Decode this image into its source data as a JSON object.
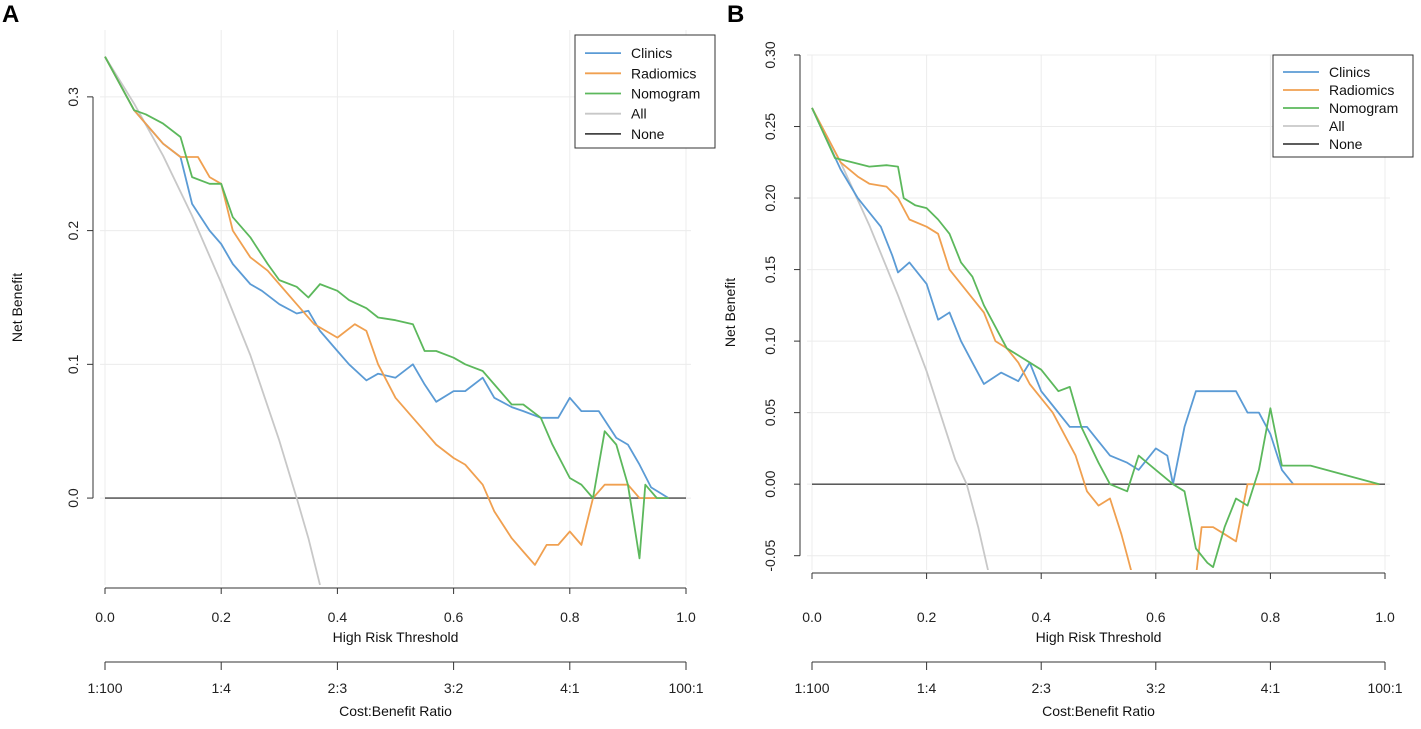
{
  "chart_data": [
    {
      "type": "line",
      "panel_label": "A",
      "title": "",
      "xlabel": "High Risk Threshold",
      "ylabel": "Net Benefit",
      "xlim": [
        0,
        1
      ],
      "ylim": [
        -0.065,
        0.35
      ],
      "x_ticks": [
        0.0,
        0.2,
        0.4,
        0.6,
        0.8,
        1.0
      ],
      "x_tick_labels": [
        "0.0",
        "0.2",
        "0.4",
        "0.6",
        "0.8",
        "1.0"
      ],
      "y_ticks": [
        0.0,
        0.1,
        0.2,
        0.3
      ],
      "y_tick_labels": [
        "0.0",
        "0.1",
        "0.2",
        "0.3"
      ],
      "secondary_axis": {
        "label": "Cost:Benefit Ratio",
        "ticks": [
          0.0,
          0.2,
          0.4,
          0.6,
          0.8,
          1.0
        ],
        "tick_labels": [
          "1:100",
          "1:4",
          "2:3",
          "3:2",
          "4:1",
          "100:1"
        ]
      },
      "grid": true,
      "legend_position": "top-right",
      "series": [
        {
          "name": "Clinics",
          "color": "#5b9bd5",
          "x": [
            0,
            0.05,
            0.1,
            0.13,
            0.15,
            0.18,
            0.2,
            0.22,
            0.25,
            0.27,
            0.3,
            0.33,
            0.35,
            0.37,
            0.4,
            0.42,
            0.45,
            0.47,
            0.5,
            0.53,
            0.55,
            0.57,
            0.6,
            0.62,
            0.65,
            0.67,
            0.7,
            0.72,
            0.75,
            0.78,
            0.8,
            0.82,
            0.85,
            0.88,
            0.9,
            0.92,
            0.94,
            0.97
          ],
          "y": [
            0.33,
            0.29,
            0.265,
            0.255,
            0.22,
            0.2,
            0.19,
            0.175,
            0.16,
            0.155,
            0.145,
            0.138,
            0.14,
            0.125,
            0.11,
            0.1,
            0.088,
            0.093,
            0.09,
            0.1,
            0.085,
            0.072,
            0.08,
            0.08,
            0.09,
            0.075,
            0.068,
            0.065,
            0.06,
            0.06,
            0.075,
            0.065,
            0.065,
            0.045,
            0.04,
            0.025,
            0.008,
            0
          ]
        },
        {
          "name": "Radiomics",
          "color": "#f0a050",
          "x": [
            0,
            0.05,
            0.1,
            0.13,
            0.16,
            0.18,
            0.2,
            0.22,
            0.25,
            0.28,
            0.3,
            0.33,
            0.36,
            0.38,
            0.4,
            0.43,
            0.45,
            0.47,
            0.5,
            0.53,
            0.55,
            0.57,
            0.6,
            0.62,
            0.65,
            0.67,
            0.7,
            0.72,
            0.74,
            0.76,
            0.78,
            0.8,
            0.82,
            0.84,
            0.86,
            0.88,
            0.9,
            0.92,
            0.94,
            0.97
          ],
          "y": [
            0.33,
            0.29,
            0.265,
            0.255,
            0.255,
            0.24,
            0.235,
            0.2,
            0.18,
            0.17,
            0.16,
            0.145,
            0.13,
            0.125,
            0.12,
            0.13,
            0.125,
            0.1,
            0.075,
            0.06,
            0.05,
            0.04,
            0.03,
            0.025,
            0.01,
            -0.01,
            -0.03,
            -0.04,
            -0.05,
            -0.035,
            -0.035,
            -0.025,
            -0.035,
            0.0,
            0.01,
            0.01,
            0.01,
            0.0,
            0,
            0
          ]
        },
        {
          "name": "Nomogram",
          "color": "#5cb85c",
          "x": [
            0,
            0.05,
            0.07,
            0.1,
            0.13,
            0.15,
            0.18,
            0.2,
            0.22,
            0.25,
            0.28,
            0.3,
            0.33,
            0.35,
            0.37,
            0.4,
            0.42,
            0.45,
            0.47,
            0.5,
            0.53,
            0.55,
            0.57,
            0.6,
            0.62,
            0.65,
            0.67,
            0.7,
            0.72,
            0.75,
            0.77,
            0.8,
            0.82,
            0.84,
            0.86,
            0.88,
            0.9,
            0.92,
            0.93,
            0.95,
            0.97
          ],
          "y": [
            0.33,
            0.29,
            0.287,
            0.28,
            0.27,
            0.24,
            0.235,
            0.235,
            0.21,
            0.195,
            0.175,
            0.163,
            0.158,
            0.15,
            0.16,
            0.155,
            0.148,
            0.142,
            0.135,
            0.133,
            0.13,
            0.11,
            0.11,
            0.105,
            0.1,
            0.095,
            0.085,
            0.07,
            0.07,
            0.06,
            0.04,
            0.015,
            0.01,
            0.0,
            0.05,
            0.04,
            0.01,
            -0.045,
            0.01,
            0,
            0
          ]
        },
        {
          "name": "All",
          "color": "#c8c8c8",
          "x": [
            0,
            0.05,
            0.1,
            0.15,
            0.2,
            0.25,
            0.3,
            0.33,
            0.35,
            0.37
          ],
          "y": [
            0.33,
            0.295,
            0.256,
            0.211,
            0.161,
            0.107,
            0.043,
            0.0,
            -0.03,
            -0.065
          ]
        },
        {
          "name": "None",
          "color": "#444444",
          "x": [
            0,
            1
          ],
          "y": [
            0,
            0
          ]
        }
      ]
    },
    {
      "type": "line",
      "panel_label": "B",
      "title": "",
      "xlabel": "High Risk Threshold",
      "ylabel": "Net Benefit",
      "xlim": [
        0,
        1
      ],
      "ylim": [
        -0.06,
        0.3
      ],
      "x_ticks": [
        0.0,
        0.2,
        0.4,
        0.6,
        0.8,
        1.0
      ],
      "x_tick_labels": [
        "0.0",
        "0.2",
        "0.4",
        "0.6",
        "0.8",
        "1.0"
      ],
      "y_ticks": [
        -0.05,
        0.0,
        0.05,
        0.1,
        0.15,
        0.2,
        0.25,
        0.3
      ],
      "y_tick_labels": [
        "-0.05",
        "0.00",
        "0.05",
        "0.10",
        "0.15",
        "0.20",
        "0.25",
        "0.30"
      ],
      "secondary_axis": {
        "label": "Cost:Benefit Ratio",
        "ticks": [
          0.0,
          0.2,
          0.4,
          0.6,
          0.8,
          1.0
        ],
        "tick_labels": [
          "1:100",
          "1:4",
          "2:3",
          "3:2",
          "4:1",
          "100:1"
        ]
      },
      "grid": true,
      "legend_position": "top-right",
      "series": [
        {
          "name": "Clinics",
          "color": "#5b9bd5",
          "x": [
            0,
            0.05,
            0.08,
            0.1,
            0.12,
            0.14,
            0.15,
            0.17,
            0.2,
            0.22,
            0.24,
            0.26,
            0.28,
            0.3,
            0.33,
            0.36,
            0.38,
            0.4,
            0.42,
            0.45,
            0.48,
            0.5,
            0.52,
            0.55,
            0.57,
            0.6,
            0.62,
            0.63,
            0.65,
            0.67,
            0.7,
            0.72,
            0.74,
            0.76,
            0.78,
            0.8,
            0.82,
            0.84
          ],
          "y": [
            0.263,
            0.22,
            0.2,
            0.19,
            0.18,
            0.16,
            0.148,
            0.155,
            0.14,
            0.115,
            0.12,
            0.1,
            0.085,
            0.07,
            0.078,
            0.072,
            0.085,
            0.065,
            0.055,
            0.04,
            0.04,
            0.03,
            0.02,
            0.015,
            0.01,
            0.025,
            0.02,
            0.0,
            0.04,
            0.065,
            0.065,
            0.065,
            0.065,
            0.05,
            0.05,
            0.035,
            0.01,
            0
          ]
        },
        {
          "name": "Radiomics",
          "color": "#f0a050",
          "x": [
            0,
            0.05,
            0.08,
            0.1,
            0.13,
            0.15,
            0.17,
            0.2,
            0.22,
            0.24,
            0.26,
            0.28,
            0.3,
            0.32,
            0.34,
            0.36,
            0.38,
            0.4,
            0.42,
            0.44,
            0.46,
            0.48,
            0.5,
            0.52,
            0.54,
            0.55,
            0.56,
            0.67,
            0.68,
            0.7,
            0.72,
            0.74,
            0.76,
            0.8,
            0.85,
            0.99
          ],
          "y": [
            0.263,
            0.225,
            0.215,
            0.21,
            0.208,
            0.2,
            0.185,
            0.18,
            0.175,
            0.15,
            0.14,
            0.13,
            0.12,
            0.1,
            0.095,
            0.085,
            0.07,
            0.06,
            0.05,
            0.035,
            0.02,
            -0.005,
            -0.015,
            -0.01,
            -0.035,
            -0.05,
            -0.065,
            -0.065,
            -0.03,
            -0.03,
            -0.035,
            -0.04,
            0.0,
            0.0,
            0.0,
            0.0
          ]
        },
        {
          "name": "Nomogram",
          "color": "#5cb85c",
          "x": [
            0,
            0.04,
            0.07,
            0.1,
            0.13,
            0.15,
            0.16,
            0.18,
            0.2,
            0.22,
            0.24,
            0.26,
            0.28,
            0.3,
            0.32,
            0.34,
            0.36,
            0.4,
            0.43,
            0.45,
            0.47,
            0.5,
            0.52,
            0.55,
            0.57,
            0.6,
            0.63,
            0.65,
            0.67,
            0.69,
            0.7,
            0.72,
            0.74,
            0.76,
            0.78,
            0.8,
            0.82,
            0.85,
            0.87,
            0.99
          ],
          "y": [
            0.263,
            0.228,
            0.225,
            0.222,
            0.223,
            0.222,
            0.2,
            0.195,
            0.193,
            0.185,
            0.175,
            0.155,
            0.145,
            0.125,
            0.11,
            0.095,
            0.09,
            0.08,
            0.065,
            0.068,
            0.04,
            0.015,
            0.0,
            -0.005,
            0.02,
            0.01,
            0.0,
            -0.005,
            -0.045,
            -0.055,
            -0.058,
            -0.03,
            -0.01,
            -0.015,
            0.01,
            0.053,
            0.013,
            0.013,
            0.013,
            0.0
          ]
        },
        {
          "name": "All",
          "color": "#c8c8c8",
          "x": [
            0,
            0.05,
            0.1,
            0.15,
            0.2,
            0.25,
            0.27,
            0.29,
            0.31
          ],
          "y": [
            0.263,
            0.225,
            0.181,
            0.132,
            0.079,
            0.017,
            0.0,
            -0.03,
            -0.065
          ]
        },
        {
          "name": "None",
          "color": "#444444",
          "x": [
            0,
            1
          ],
          "y": [
            0,
            0
          ]
        }
      ]
    }
  ]
}
